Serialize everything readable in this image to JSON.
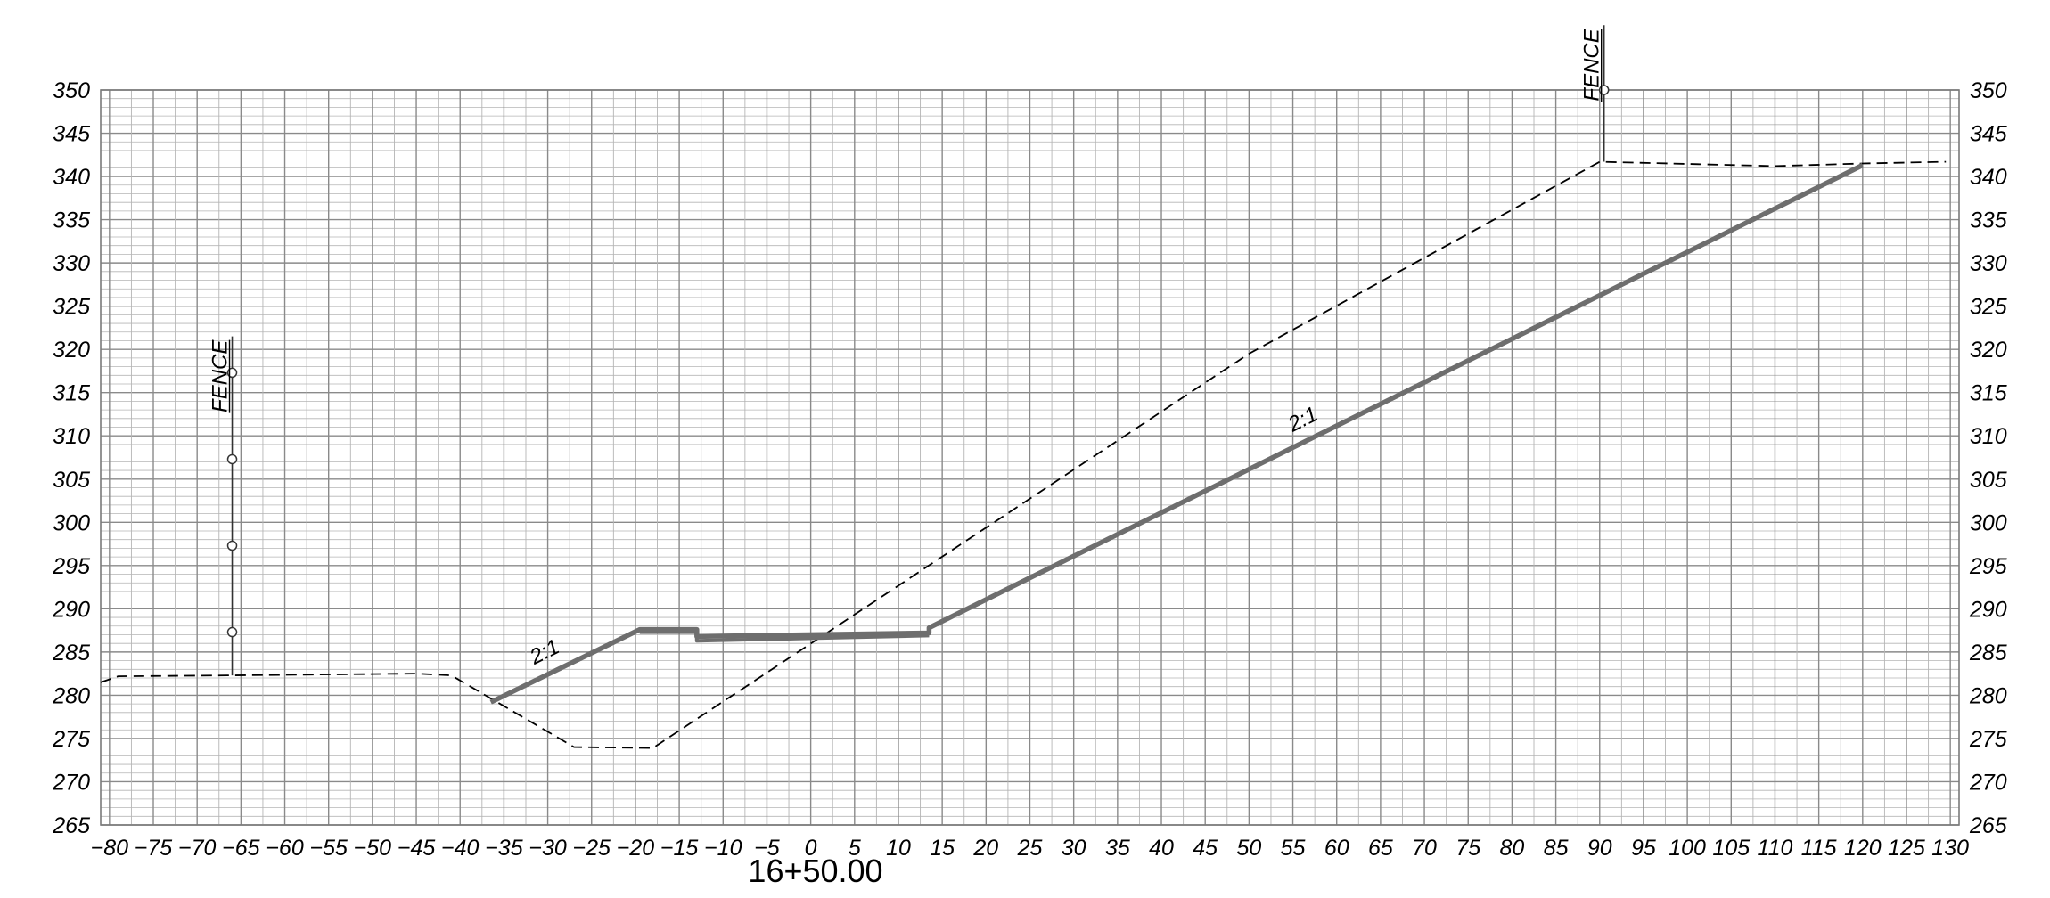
{
  "chart_data": {
    "type": "line",
    "title": "",
    "station": "16+50.00",
    "xlabel": "",
    "ylabel": "",
    "xlim": [
      -81,
      131
    ],
    "ylim": [
      265,
      350
    ],
    "x_ticks": [
      -80,
      -75,
      -70,
      -65,
      -60,
      -55,
      -50,
      -45,
      -40,
      -35,
      -30,
      -25,
      -20,
      -15,
      -10,
      -5,
      0,
      5,
      10,
      15,
      20,
      25,
      30,
      35,
      40,
      45,
      50,
      55,
      60,
      65,
      70,
      75,
      80,
      85,
      90,
      95,
      100,
      105,
      110,
      115,
      120,
      125,
      130
    ],
    "y_ticks": [
      265,
      270,
      275,
      280,
      285,
      290,
      295,
      300,
      305,
      310,
      315,
      320,
      325,
      330,
      335,
      340,
      345,
      350
    ],
    "grid": true,
    "series": [
      {
        "role": "existing-ground",
        "style": "dashed",
        "color": "#000000",
        "points": [
          [
            -81,
            281.5
          ],
          [
            -79,
            282.2
          ],
          [
            -66,
            282.3
          ],
          [
            -45,
            282.5
          ],
          [
            -41,
            282.3
          ],
          [
            -27,
            274.0
          ],
          [
            -18,
            273.9
          ],
          [
            50,
            319.5
          ],
          [
            90,
            341.7
          ],
          [
            110,
            341.2
          ],
          [
            120,
            341.5
          ],
          [
            129.5,
            341.7
          ]
        ]
      },
      {
        "role": "proposed-section",
        "style": "solid",
        "color": "#6e6e6e",
        "points": [
          [
            -36.5,
            279.2
          ],
          [
            -19.5,
            287.6
          ],
          [
            -13,
            287.6
          ],
          [
            -13,
            286.8
          ],
          [
            13.5,
            287.2
          ],
          [
            13.5,
            287.8
          ],
          [
            120,
            341.3
          ]
        ]
      },
      {
        "role": "proposed-section-detail",
        "style": "solid",
        "color": "#6e6e6e",
        "points": [
          [
            -19.5,
            287.3
          ],
          [
            -13,
            287.3
          ],
          [
            -13,
            286.3
          ],
          [
            13.5,
            286.9
          ]
        ]
      }
    ],
    "fences": [
      {
        "label": "FENCE",
        "x": -66,
        "base": 282.3,
        "top": 321.5,
        "posts": [
          287.3,
          297.3,
          307.3,
          317.3
        ]
      },
      {
        "label": "FENCE",
        "x": 90.5,
        "base": 341.7,
        "top": 357.5,
        "posts": [
          350
        ]
      }
    ],
    "slope_labels": [
      {
        "text": "2:1",
        "x": -30,
        "y": 284.3,
        "angle": -26.5
      },
      {
        "text": "2:1",
        "x": 56.5,
        "y": 311.2,
        "angle": -26.5
      }
    ]
  }
}
